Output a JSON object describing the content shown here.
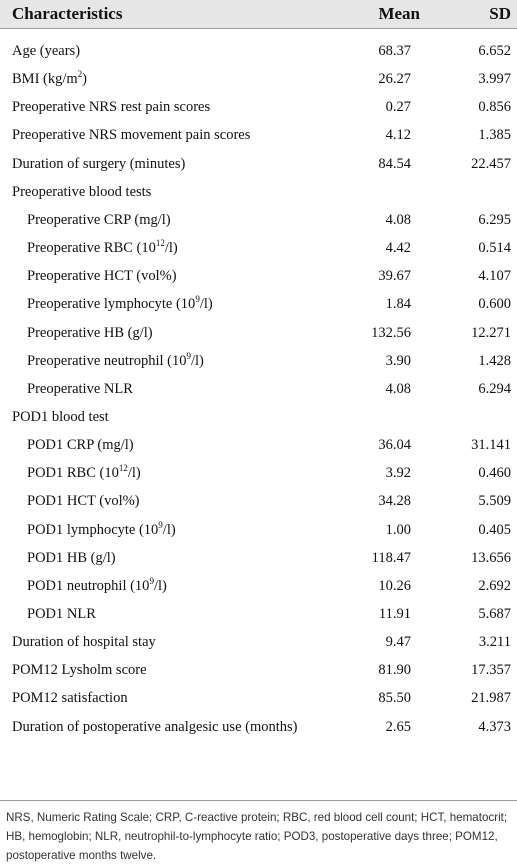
{
  "table": {
    "header": [
      "Characteristics",
      "Mean",
      "SD"
    ],
    "rows": [
      {
        "label": "Age (years)",
        "mean": "68.37",
        "sd": "6.652"
      },
      {
        "label": "BMI (kg/m",
        "sup": "2",
        "after": ")",
        "mean": "26.27",
        "sd": "3.997"
      },
      {
        "label": "Preoperative NRS rest pain scores",
        "mean": "0.27",
        "sd": "0.856"
      },
      {
        "label": "Preoperative NRS movement pain scores",
        "mean": "4.12",
        "sd": "1.385"
      },
      {
        "label": "Duration of surgery (minutes)",
        "mean": "84.54",
        "sd": "22.457"
      },
      {
        "label": "Preoperative blood tests"
      },
      {
        "label": "Preoperative CRP (mg/l)",
        "indent": true,
        "mean": "4.08",
        "sd": "6.295"
      },
      {
        "label": "Preoperative RBC (10",
        "sup": "12",
        "after": "/l)",
        "indent": true,
        "mean": "4.42",
        "sd": "0.514"
      },
      {
        "label": "Preoperative HCT (vol%)",
        "indent": true,
        "mean": "39.67",
        "sd": "4.107"
      },
      {
        "label": "Preoperative lymphocyte (10",
        "sup": "9",
        "after": "/l)",
        "indent": true,
        "mean": "1.84",
        "sd": "0.600"
      },
      {
        "label": "Preoperative HB (g/l)",
        "indent": true,
        "mean": "132.56",
        "sd": "12.271"
      },
      {
        "label": "Preoperative neutrophil (10",
        "sup": "9",
        "after": "/l)",
        "indent": true,
        "mean": "3.90",
        "sd": "1.428"
      },
      {
        "label": "Preoperative NLR",
        "indent": true,
        "mean": "4.08",
        "sd": "6.294"
      },
      {
        "label": "POD1 blood test"
      },
      {
        "label": "POD1 CRP (mg/l)",
        "indent": true,
        "mean": "36.04",
        "sd": "31.141"
      },
      {
        "label": "POD1 RBC (10",
        "sup": "12",
        "after": "/l)",
        "indent": true,
        "mean": "3.92",
        "sd": "0.460"
      },
      {
        "label": "POD1 HCT (vol%)",
        "indent": true,
        "mean": "34.28",
        "sd": "5.509"
      },
      {
        "label": "POD1 lymphocyte (10",
        "sup": "9",
        "after": "/l)",
        "indent": true,
        "mean": "1.00",
        "sd": "0.405"
      },
      {
        "label": "POD1 HB (g/l)",
        "indent": true,
        "mean": "118.47",
        "sd": "13.656"
      },
      {
        "label": "POD1 neutrophil (10",
        "sup": "9",
        "after": "/l)",
        "indent": true,
        "mean": "10.26",
        "sd": "2.692"
      },
      {
        "label": "POD1 NLR",
        "indent": true,
        "mean": "11.91",
        "sd": "5.687"
      },
      {
        "label": "Duration of hospital stay",
        "mean": "9.47",
        "sd": "3.211"
      },
      {
        "label": "POM12 Lysholm score",
        "mean": "81.90",
        "sd": "17.357"
      },
      {
        "label": "POM12 satisfaction",
        "mean": "85.50",
        "sd": "21.987"
      },
      {
        "label": "Duration of postoperative analgesic use (months)",
        "mean": "2.65",
        "sd": "4.373"
      }
    ],
    "footnote": "NRS, Numeric Rating Scale; CRP, C-reactive protein; RBC, red blood cell count; HCT, hematocrit; HB, hemoglobin; NLR, neutrophil-to-lymphocyte ratio; POD3, postoperative days three; POM12, postoperative months twelve."
  }
}
